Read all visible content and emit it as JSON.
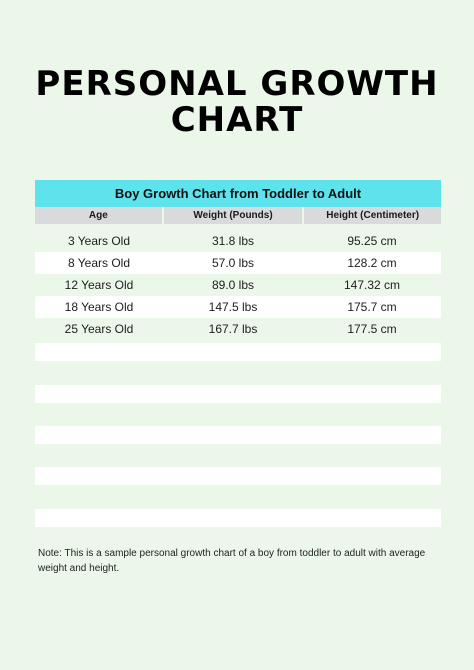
{
  "title": "PERSONAL GROWTH CHART",
  "table": {
    "caption": "Boy Growth Chart from Toddler to Adult",
    "headers": [
      "Age",
      "Weight (Pounds)",
      "Height (Centimeter)"
    ],
    "rows": [
      [
        "3 Years Old",
        "31.8 lbs",
        "95.25 cm"
      ],
      [
        "8 Years Old",
        "57.0 lbs",
        "128.2 cm"
      ],
      [
        "12 Years Old",
        "89.0 lbs",
        "147.32 cm"
      ],
      [
        "18 Years Old",
        "147.5 lbs",
        "175.7 cm"
      ],
      [
        "25 Years Old",
        "167.7 lbs",
        "177.5 cm"
      ]
    ]
  },
  "note": "Note: This is a sample personal growth chart of a boy from toddler to adult with average weight and height."
}
